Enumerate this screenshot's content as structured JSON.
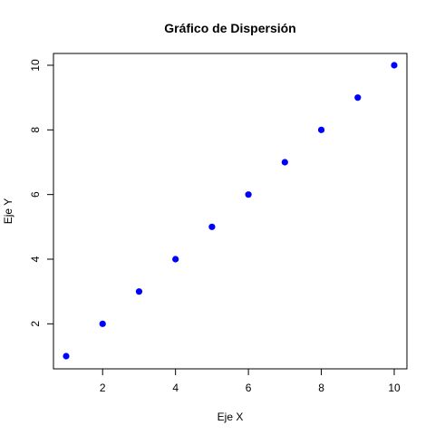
{
  "chart_data": {
    "type": "scatter",
    "title": "Gráfico de Dispersión",
    "xlabel": "Eje X",
    "ylabel": "Eje Y",
    "x": [
      1,
      2,
      3,
      4,
      5,
      6,
      7,
      8,
      9,
      10
    ],
    "y": [
      1,
      2,
      3,
      4,
      5,
      6,
      7,
      8,
      9,
      10
    ],
    "xlim": [
      1,
      10
    ],
    "ylim": [
      1,
      10
    ],
    "x_ticks": [
      2,
      4,
      6,
      8,
      10
    ],
    "y_ticks": [
      2,
      4,
      6,
      8,
      10
    ],
    "x_tick_labels": [
      "2",
      "4",
      "6",
      "8",
      "10"
    ],
    "y_tick_labels": [
      "2",
      "4",
      "6",
      "8",
      "10"
    ],
    "point_color": "#0000ff",
    "grid": false
  }
}
